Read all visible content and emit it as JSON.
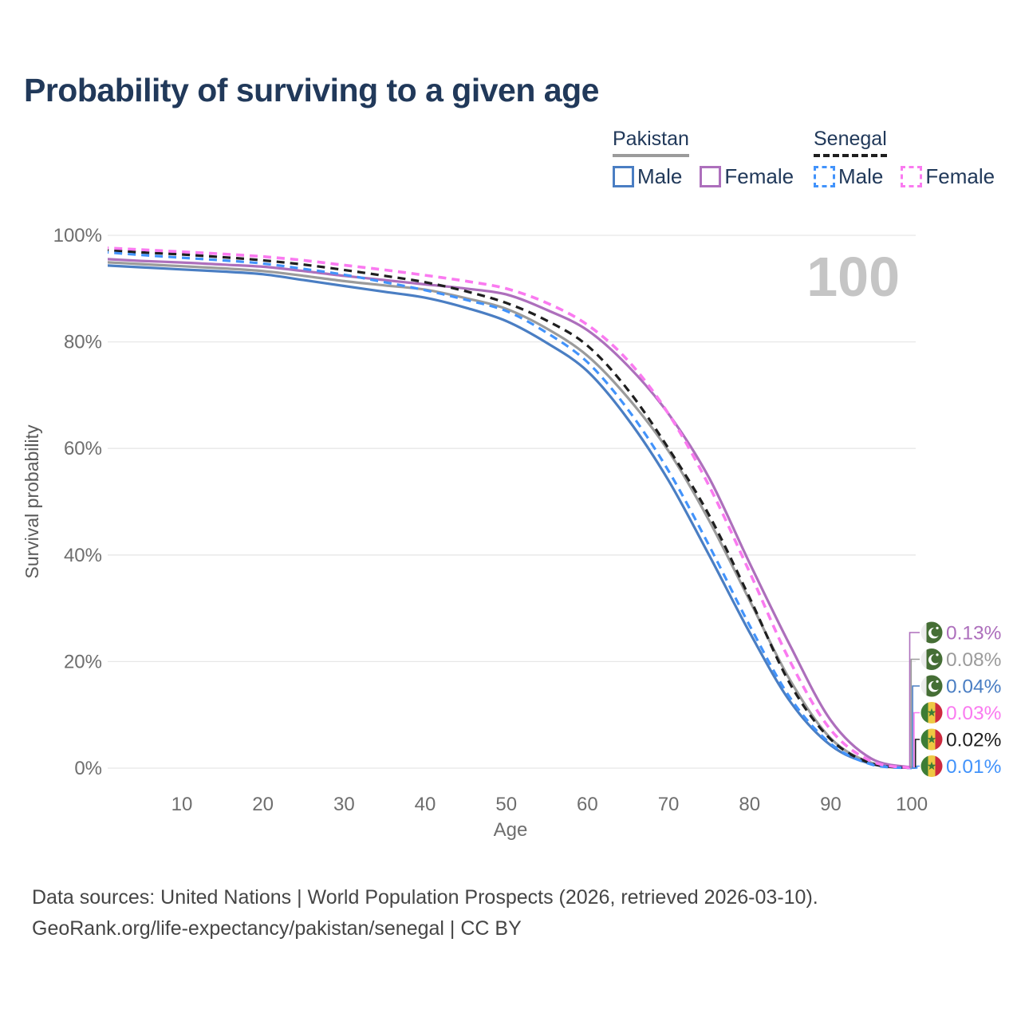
{
  "legend": {
    "groups": [
      {
        "label": "Pakistan",
        "line_style": "solid",
        "line_color": "#9b9b9b",
        "items": [
          {
            "label": "Male",
            "color": "#4a7ec3",
            "dashed": false
          },
          {
            "label": "Female",
            "color": "#ad6fbc",
            "dashed": false
          }
        ]
      },
      {
        "label": "Senegal",
        "line_style": "dashed",
        "line_color": "#1f1f1f",
        "items": [
          {
            "label": "Male",
            "color": "#4293fb",
            "dashed": true
          },
          {
            "label": "Female",
            "color": "#fa7af0",
            "dashed": true
          }
        ]
      }
    ]
  },
  "footer": {
    "line1": "Data sources: United Nations | World Population Prospects (2026, retrieved 2026-03-10).",
    "line2": "GeoRank.org/life-expectancy/pakistan/senegal | CC BY"
  },
  "chart_data": {
    "type": "line",
    "title": "Probability of surviving to a given age",
    "xlabel": "Age",
    "ylabel": "Survival probability",
    "frame_label": "100",
    "xlim": [
      0,
      100
    ],
    "ylim": [
      0,
      100
    ],
    "grid": "horizontal",
    "x_ticks": [
      10,
      20,
      30,
      40,
      50,
      60,
      70,
      80,
      90,
      100
    ],
    "y_ticks": [
      {
        "label": "100%",
        "value": 100
      },
      {
        "label": "80%",
        "value": 80
      },
      {
        "label": "60%",
        "value": 60
      },
      {
        "label": "40%",
        "value": 40
      },
      {
        "label": "20%",
        "value": 20
      },
      {
        "label": "0%",
        "value": 0
      }
    ],
    "x": [
      0,
      5,
      10,
      15,
      20,
      25,
      30,
      35,
      40,
      45,
      50,
      55,
      60,
      65,
      70,
      75,
      80,
      85,
      90,
      95,
      100
    ],
    "series": [
      {
        "key": "pakistan-all",
        "label": "Pakistan",
        "country": "pakistan",
        "color": "#9b9b9b",
        "dashed": false,
        "values": [
          95.0,
          94.6,
          94.2,
          93.8,
          93.3,
          92.4,
          91.4,
          90.6,
          89.8,
          88.2,
          86.2,
          82.5,
          77.4,
          69.5,
          59.5,
          46.5,
          31.5,
          16.5,
          5.6,
          1.0,
          0.08
        ]
      },
      {
        "key": "pakistan-male",
        "label": "Pakistan Male",
        "country": "pakistan",
        "color": "#4a7ec3",
        "dashed": false,
        "values": [
          94.4,
          94.0,
          93.6,
          93.2,
          92.7,
          91.6,
          90.5,
          89.4,
          88.3,
          86.4,
          83.9,
          79.8,
          74.5,
          65.5,
          54.0,
          40.0,
          25.5,
          12.5,
          4.3,
          0.8,
          0.04
        ]
      },
      {
        "key": "pakistan-female",
        "label": "Pakistan Female",
        "country": "pakistan",
        "color": "#ad6fbc",
        "dashed": false,
        "values": [
          95.6,
          95.2,
          94.9,
          94.5,
          94.1,
          93.3,
          92.4,
          91.6,
          90.8,
          90.0,
          88.9,
          86.0,
          82.2,
          75.5,
          66.5,
          54.5,
          38.5,
          23.0,
          9.0,
          1.8,
          0.13
        ]
      },
      {
        "key": "senegal-all",
        "label": "Senegal",
        "country": "senegal",
        "color": "#1f1f1f",
        "dashed": true,
        "values": [
          97.3,
          96.8,
          96.4,
          95.9,
          95.3,
          94.5,
          93.5,
          92.4,
          91.2,
          89.5,
          87.3,
          84.0,
          79.3,
          71.0,
          60.0,
          47.5,
          32.0,
          15.8,
          5.4,
          0.9,
          0.02
        ]
      },
      {
        "key": "senegal-male",
        "label": "Senegal Male",
        "country": "senegal",
        "color": "#4293fb",
        "dashed": true,
        "values": [
          96.9,
          96.3,
          95.8,
          95.3,
          94.7,
          93.7,
          92.6,
          91.2,
          89.7,
          87.9,
          85.8,
          81.7,
          76.2,
          67.3,
          55.8,
          41.8,
          26.8,
          13.2,
          4.6,
          0.7,
          0.01
        ]
      },
      {
        "key": "senegal-female",
        "label": "Senegal Female",
        "country": "senegal",
        "color": "#fa7af0",
        "dashed": true,
        "values": [
          97.7,
          97.3,
          96.9,
          96.5,
          96.0,
          95.3,
          94.4,
          93.5,
          92.5,
          91.4,
          90.0,
          87.3,
          83.2,
          76.5,
          66.5,
          53.0,
          36.8,
          20.0,
          7.2,
          1.3,
          0.03
        ]
      }
    ],
    "end_labels": [
      {
        "series": "pakistan-female",
        "value": "0.13%"
      },
      {
        "series": "pakistan-all",
        "value": "0.08%"
      },
      {
        "series": "pakistan-male",
        "value": "0.04%"
      },
      {
        "series": "senegal-female",
        "value": "0.03%"
      },
      {
        "series": "senegal-all",
        "value": "0.02%"
      },
      {
        "series": "senegal-male",
        "value": "0.01%"
      }
    ],
    "flag_colors": {
      "pakistan_green": "#456e35",
      "pakistan_white": "#ededed",
      "senegal_green": "#3d7d35",
      "senegal_yellow": "#eec943",
      "senegal_red": "#cd2a3e"
    },
    "style_colors": {
      "grid": "#e7e7e7",
      "tick_text": "#6e6e6e",
      "axis_label": "#5a5a5a",
      "watermark": "#c5c5c5",
      "title": "#21395a"
    }
  }
}
